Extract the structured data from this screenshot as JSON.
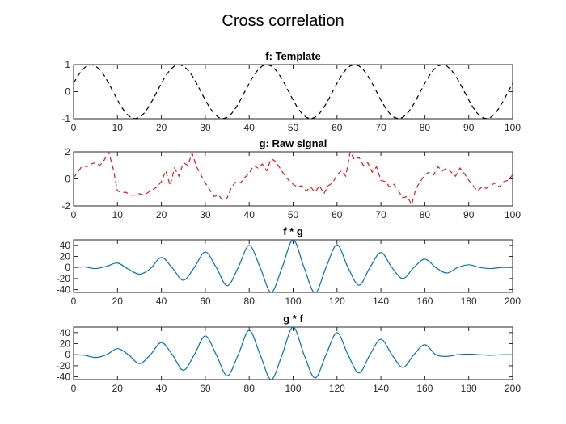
{
  "figure": {
    "title": "Cross correlation"
  },
  "chart_data": [
    {
      "type": "line",
      "title": "f: Template",
      "xlim": [
        0,
        100
      ],
      "ylim": [
        -1,
        1
      ],
      "xticks": [
        0,
        10,
        20,
        30,
        40,
        50,
        60,
        70,
        80,
        90,
        100
      ],
      "yticks": [
        -1,
        0,
        1
      ],
      "series": [
        {
          "name": "f",
          "color": "#000000",
          "style": "dashed",
          "x": [
            0,
            1,
            2,
            3,
            4,
            5,
            6,
            7,
            8,
            9,
            10,
            11,
            12,
            13,
            14,
            15,
            16,
            17,
            18,
            19,
            20,
            21,
            22,
            23,
            24,
            25,
            26,
            27,
            28,
            29,
            30,
            31,
            32,
            33,
            34,
            35,
            36,
            37,
            38,
            39,
            40,
            41,
            42,
            43,
            44,
            45,
            46,
            47,
            48,
            49,
            50,
            51,
            52,
            53,
            54,
            55,
            56,
            57,
            58,
            59,
            60,
            61,
            62,
            63,
            64,
            65,
            66,
            67,
            68,
            69,
            70,
            71,
            72,
            73,
            74,
            75,
            76,
            77,
            78,
            79,
            80,
            81,
            82,
            83,
            84,
            85,
            86,
            87,
            88,
            89,
            90,
            91,
            92,
            93,
            94,
            95,
            96,
            97,
            98,
            99,
            100
          ],
          "values": [
            0.31,
            0.59,
            0.81,
            0.95,
            1.0,
            0.95,
            0.81,
            0.59,
            0.31,
            0.0,
            -0.31,
            -0.59,
            -0.81,
            -0.95,
            -1.0,
            -0.95,
            -0.81,
            -0.59,
            -0.31,
            0.0,
            0.31,
            0.59,
            0.81,
            0.95,
            1.0,
            0.95,
            0.81,
            0.59,
            0.31,
            0.0,
            -0.31,
            -0.59,
            -0.81,
            -0.95,
            -1.0,
            -0.95,
            -0.81,
            -0.59,
            -0.31,
            0.0,
            0.31,
            0.59,
            0.81,
            0.95,
            1.0,
            0.95,
            0.81,
            0.59,
            0.31,
            0.0,
            -0.31,
            -0.59,
            -0.81,
            -0.95,
            -1.0,
            -0.95,
            -0.81,
            -0.59,
            -0.31,
            0.0,
            0.31,
            0.59,
            0.81,
            0.95,
            1.0,
            0.95,
            0.81,
            0.59,
            0.31,
            0.0,
            -0.31,
            -0.59,
            -0.81,
            -0.95,
            -1.0,
            -0.95,
            -0.81,
            -0.59,
            -0.31,
            0.0,
            0.31,
            0.59,
            0.81,
            0.95,
            1.0,
            0.95,
            0.81,
            0.59,
            0.31,
            0.0,
            -0.31,
            -0.59,
            -0.81,
            -0.95,
            -1.0,
            -0.95,
            -0.81,
            -0.59,
            -0.31,
            0.0,
            0.31
          ]
        }
      ]
    },
    {
      "type": "line",
      "title": "g: Raw signal",
      "xlim": [
        0,
        100
      ],
      "ylim": [
        -2,
        2
      ],
      "xticks": [
        0,
        10,
        20,
        30,
        40,
        50,
        60,
        70,
        80,
        90,
        100
      ],
      "yticks": [
        -2,
        0,
        2
      ],
      "series": [
        {
          "name": "g",
          "color": "#e41a1c",
          "style": "dashed",
          "x": [
            0,
            1,
            2,
            3,
            4,
            5,
            6,
            7,
            8,
            9,
            10,
            11,
            12,
            13,
            14,
            15,
            16,
            17,
            18,
            19,
            20,
            21,
            22,
            23,
            24,
            25,
            26,
            27,
            28,
            29,
            30,
            31,
            32,
            33,
            34,
            35,
            36,
            37,
            38,
            39,
            40,
            41,
            42,
            43,
            44,
            45,
            46,
            47,
            48,
            49,
            50,
            51,
            52,
            53,
            54,
            55,
            56,
            57,
            58,
            59,
            60,
            61,
            62,
            63,
            64,
            65,
            66,
            67,
            68,
            69,
            70,
            71,
            72,
            73,
            74,
            75,
            76,
            77,
            78,
            79,
            80,
            81,
            82,
            83,
            84,
            85,
            86,
            87,
            88,
            89,
            90,
            91,
            92,
            93,
            94,
            95,
            96,
            97,
            98,
            99,
            100
          ],
          "values": [
            0.1,
            0.5,
            1.0,
            0.9,
            1.1,
            1.2,
            1.0,
            1.4,
            2.0,
            0.8,
            -0.9,
            -1.0,
            -1.0,
            -1.2,
            -1.2,
            -1.1,
            -1.2,
            -1.0,
            -0.8,
            -0.6,
            -0.2,
            0.6,
            -0.5,
            0.8,
            0.2,
            1.2,
            1.0,
            1.9,
            0.9,
            0.3,
            -0.3,
            -0.8,
            -1.3,
            -1.2,
            -1.6,
            -1.4,
            -0.6,
            -0.2,
            -0.3,
            0.1,
            0.4,
            1.0,
            0.8,
            1.1,
            0.6,
            1.5,
            1.3,
            0.8,
            0.3,
            -0.1,
            -0.4,
            -0.6,
            -0.5,
            -0.9,
            -0.6,
            -1.0,
            -0.5,
            -1.1,
            -0.5,
            -0.3,
            0.3,
            0.6,
            0.2,
            2.0,
            1.4,
            1.6,
            1.0,
            1.2,
            0.5,
            0.9,
            -0.1,
            -0.2,
            -0.6,
            -0.4,
            -0.9,
            -1.4,
            -1.3,
            -1.9,
            -0.7,
            -0.2,
            0.3,
            0.5,
            0.3,
            0.9,
            0.6,
            0.8,
            0.5,
            0.2,
            0.8,
            0.4,
            -0.1,
            -0.5,
            -0.9,
            -0.6,
            -0.7,
            -0.5,
            -0.3,
            -0.6,
            -0.2,
            -0.1,
            0.3
          ]
        }
      ]
    },
    {
      "type": "line",
      "title": "f * g",
      "xlim": [
        0,
        200
      ],
      "ylim": [
        -45,
        50
      ],
      "xticks": [
        0,
        20,
        40,
        60,
        80,
        100,
        120,
        140,
        160,
        180,
        200
      ],
      "yticks": [
        -40,
        -20,
        0,
        20,
        40
      ],
      "series": [
        {
          "name": "f*g",
          "color": "#0072bd",
          "style": "solid",
          "x": [
            0,
            5,
            10,
            15,
            20,
            25,
            30,
            35,
            40,
            45,
            50,
            55,
            60,
            65,
            70,
            75,
            80,
            85,
            90,
            95,
            100,
            105,
            110,
            115,
            120,
            125,
            130,
            135,
            140,
            145,
            150,
            155,
            160,
            165,
            170,
            175,
            180,
            185,
            190,
            195,
            200
          ],
          "values": [
            0,
            1,
            -2,
            2,
            8,
            -3,
            -12,
            -2,
            18,
            -1,
            -23,
            0,
            28,
            0,
            -33,
            0,
            40,
            0,
            -45,
            0,
            50,
            0,
            -46,
            0,
            41,
            0,
            -32,
            0,
            27,
            0,
            -20,
            0,
            15,
            0,
            -10,
            0,
            5,
            0,
            -2,
            0,
            0
          ]
        }
      ]
    },
    {
      "type": "line",
      "title": "g * f",
      "xlim": [
        0,
        200
      ],
      "ylim": [
        -45,
        50
      ],
      "xticks": [
        0,
        20,
        40,
        60,
        80,
        100,
        120,
        140,
        160,
        180,
        200
      ],
      "yticks": [
        -40,
        -20,
        0,
        20,
        40
      ],
      "series": [
        {
          "name": "g*f",
          "color": "#0072bd",
          "style": "solid",
          "x": [
            0,
            5,
            10,
            15,
            20,
            25,
            30,
            35,
            40,
            45,
            50,
            55,
            60,
            65,
            70,
            75,
            80,
            85,
            90,
            95,
            100,
            105,
            110,
            115,
            120,
            125,
            130,
            135,
            140,
            145,
            150,
            155,
            160,
            165,
            170,
            175,
            180,
            185,
            190,
            195,
            200
          ],
          "values": [
            0,
            -1,
            -5,
            0,
            11,
            0,
            -16,
            0,
            22,
            0,
            -28,
            0,
            34,
            0,
            -38,
            0,
            44,
            0,
            -45,
            0,
            50,
            0,
            -42,
            0,
            40,
            0,
            -33,
            0,
            28,
            0,
            -23,
            0,
            18,
            0,
            -3,
            0,
            1,
            0,
            -1,
            0,
            0
          ]
        }
      ]
    }
  ]
}
